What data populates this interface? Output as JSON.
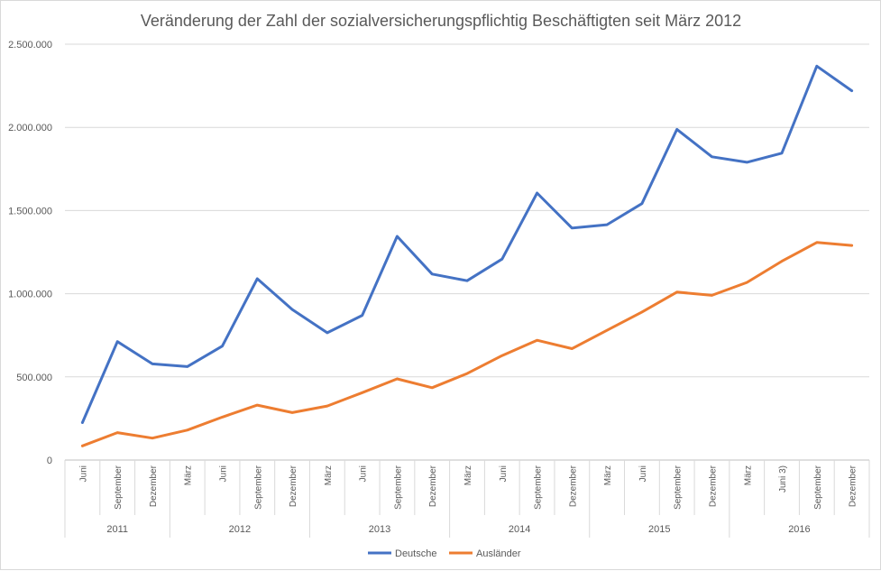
{
  "chart_data": {
    "type": "line",
    "title": "Veränderung der Zahl der sozialversicherungspflichtig Beschäftigten seit März 2012",
    "xlabel": "",
    "ylabel": "",
    "ylim": [
      0,
      2500000
    ],
    "yticks": [
      "0",
      "500.000",
      "1.000.000",
      "1.500.000",
      "2.000.000",
      "2.500.000"
    ],
    "ytick_values": [
      0,
      500000,
      1000000,
      1500000,
      2000000,
      2500000
    ],
    "grid": true,
    "legend_position": "bottom",
    "categories": [
      "Juni",
      "September",
      "Dezember",
      "März",
      "Juni",
      "September",
      "Dezember",
      "März",
      "Juni",
      "September",
      "Dezember",
      "März",
      "Juni",
      "September",
      "Dezember",
      "März",
      "Juni",
      "September",
      "Dezember",
      "März",
      "Juni 3)",
      "September",
      "Dezember"
    ],
    "year_groups": [
      {
        "label": "2011",
        "count": 3
      },
      {
        "label": "2012",
        "count": 4
      },
      {
        "label": "2013",
        "count": 4
      },
      {
        "label": "2014",
        "count": 4
      },
      {
        "label": "2015",
        "count": 4
      },
      {
        "label": "2016",
        "count": 4
      }
    ],
    "series": [
      {
        "name": "Deutsche",
        "color": "#4472c4",
        "values": [
          225000,
          712000,
          578000,
          562000,
          685000,
          1090000,
          905000,
          765000,
          870000,
          1345000,
          1118000,
          1078000,
          1208000,
          1605000,
          1395000,
          1415000,
          1542000,
          1988000,
          1823000,
          1790000,
          1845000,
          2368000,
          2220000
        ]
      },
      {
        "name": "Ausländer",
        "color": "#ed7d31",
        "values": [
          85000,
          165000,
          132000,
          180000,
          258000,
          330000,
          285000,
          325000,
          405000,
          488000,
          435000,
          520000,
          628000,
          720000,
          670000,
          780000,
          890000,
          1010000,
          990000,
          1068000,
          1195000,
          1308000,
          1290000
        ]
      }
    ]
  }
}
